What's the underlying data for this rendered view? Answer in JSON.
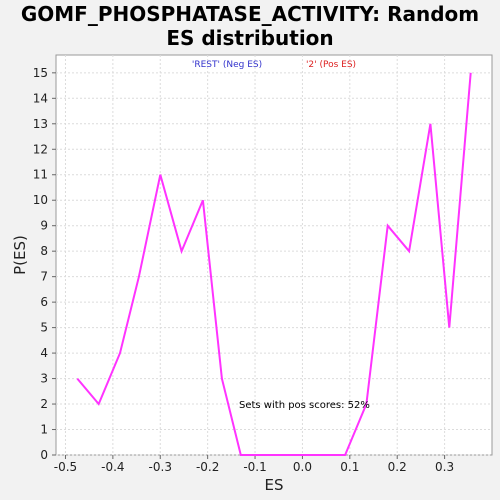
{
  "chart_data": {
    "type": "line",
    "title_line1": "GOMF_PHOSPHATASE_ACTIVITY: Random",
    "title_line2": "ES distribution",
    "xlabel": "ES",
    "ylabel": "P(ES)",
    "xlim": [
      -0.52,
      0.4
    ],
    "ylim": [
      0,
      15.7
    ],
    "xticks": [
      -0.5,
      -0.4,
      -0.3,
      -0.2,
      -0.1,
      0.0,
      0.1,
      0.2,
      0.3
    ],
    "xtick_labels": [
      "-0.5",
      "-0.4",
      "-0.3",
      "-0.2",
      "-0.1",
      "0.0",
      "0.1",
      "0.2",
      "0.3"
    ],
    "yticks": [
      0,
      1,
      2,
      3,
      4,
      5,
      6,
      7,
      8,
      9,
      10,
      11,
      12,
      13,
      14,
      15
    ],
    "ytick_labels": [
      "0",
      "1",
      "2",
      "3",
      "4",
      "5",
      "6",
      "7",
      "8",
      "9",
      "10",
      "11",
      "12",
      "13",
      "14",
      "15"
    ],
    "grid": true,
    "legend_placement": "top-center",
    "legend": [
      {
        "label": "'REST' (Neg ES)",
        "color": "#3333cc"
      },
      {
        "label": "'2' (Pos ES)",
        "color": "#dd2222"
      }
    ],
    "annotation": "Sets with pos scores: 52%",
    "series": [
      {
        "color": "#ff33ff",
        "x": [
          -0.475,
          -0.43,
          -0.385,
          -0.345,
          -0.3,
          -0.255,
          -0.21,
          -0.17,
          -0.13,
          -0.085,
          0.0,
          0.09,
          0.135,
          0.18,
          0.225,
          0.27,
          0.31,
          0.355
        ],
        "y": [
          3,
          2,
          4,
          7,
          11,
          8,
          10,
          3,
          0,
          0,
          0,
          0,
          2,
          9,
          8,
          13,
          5,
          15
        ]
      }
    ]
  }
}
